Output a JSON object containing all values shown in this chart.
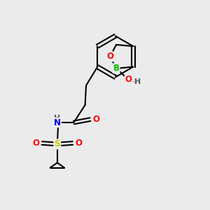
{
  "background_color": "#ebebeb",
  "bond_color": "#000000",
  "atom_colors": {
    "B": "#00bb00",
    "O": "#ff0000",
    "N": "#0000ee",
    "S": "#cccc00",
    "H": "#555555",
    "C": "#000000"
  },
  "figsize": [
    3.0,
    3.0
  ],
  "dpi": 100
}
